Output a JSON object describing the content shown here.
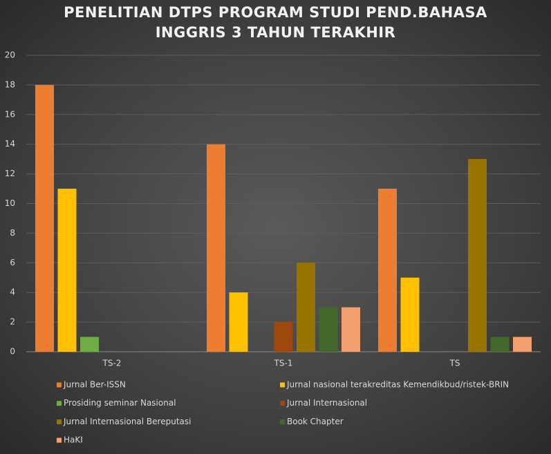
{
  "chart_data": {
    "type": "bar",
    "title": "PENELITIAN DTPS PROGRAM STUDI PEND.BAHASA INGGRIS 3 TAHUN TERAKHIR",
    "categories": [
      "TS-2",
      "TS-1",
      "TS"
    ],
    "series": [
      {
        "name": "Jurnal Ber-ISSN",
        "color": "#ed7d31",
        "values": [
          18,
          14,
          11
        ]
      },
      {
        "name": "Jurnal nasional terakreditas Kemendikbud/ristek-BRIN",
        "color": "#ffc000",
        "values": [
          11,
          4,
          5
        ]
      },
      {
        "name": "Prosiding seminar Nasional",
        "color": "#70ad47",
        "values": [
          1,
          0,
          0
        ]
      },
      {
        "name": "Jurnal Internasional",
        "color": "#9e480e",
        "values": [
          0,
          2,
          0
        ]
      },
      {
        "name": "Jurnal Internasional Bereputasi",
        "color": "#997300",
        "values": [
          0,
          6,
          13
        ]
      },
      {
        "name": "Book Chapter",
        "color": "#43682b",
        "values": [
          0,
          3,
          1
        ]
      },
      {
        "name": "HaKI",
        "color": "#f4a06e",
        "values": [
          0,
          3,
          1
        ]
      }
    ],
    "ylim": [
      0,
      20
    ],
    "yticks": [
      0,
      2,
      4,
      6,
      8,
      10,
      12,
      14,
      16,
      18,
      20
    ],
    "grid": true,
    "legend": "bottom"
  }
}
